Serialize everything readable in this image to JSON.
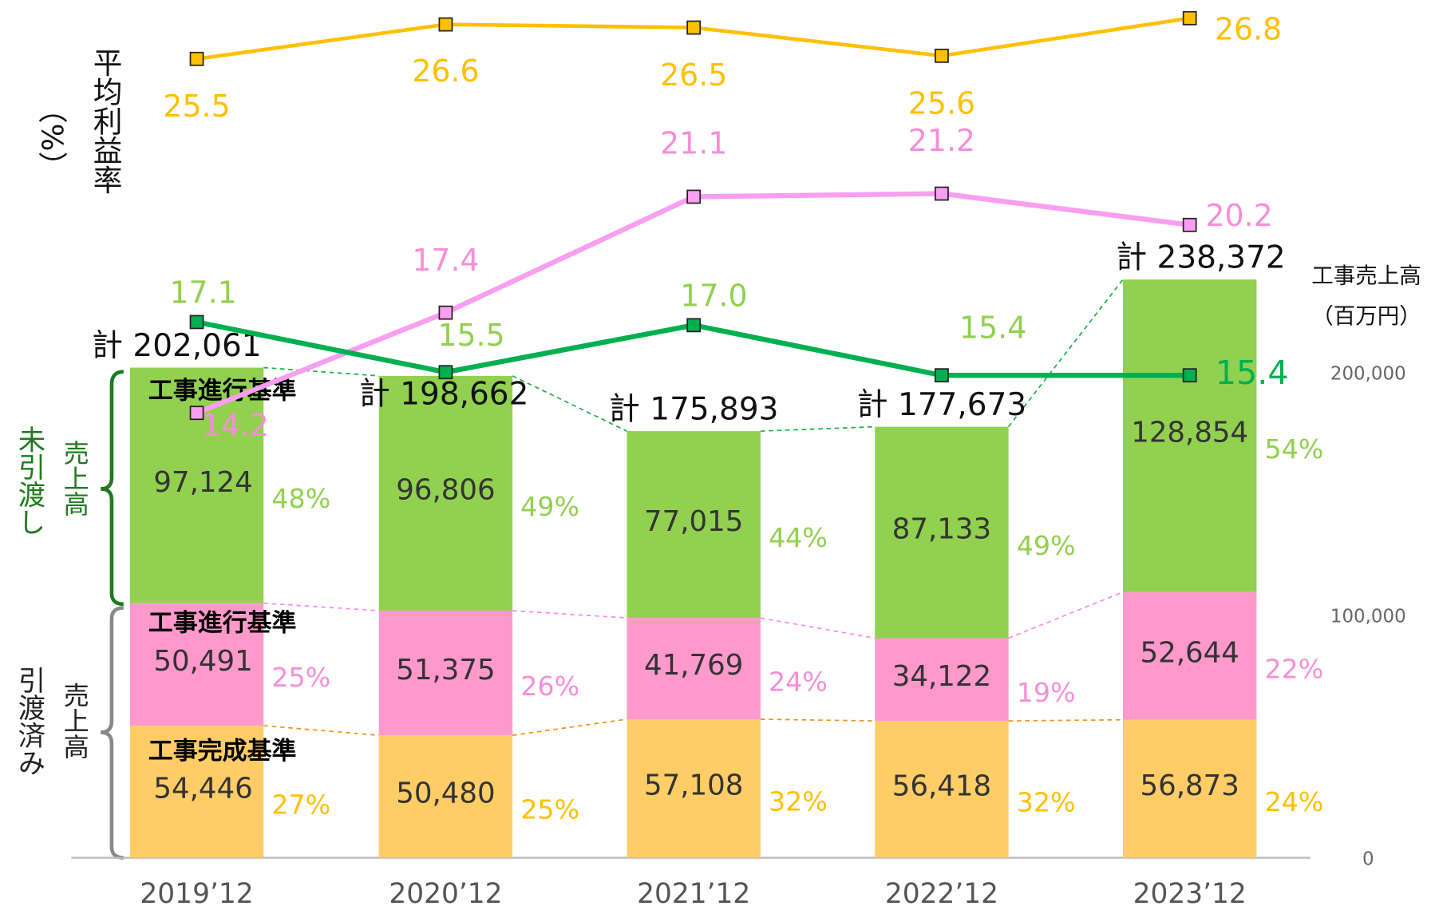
{
  "chart_data": {
    "type": "bar",
    "categories": [
      "2019’12",
      "2020’12",
      "2021’12",
      "2022’12",
      "2023’12"
    ],
    "series": [
      {
        "name": "工事完成基準",
        "color": "#ffcc66",
        "values": [
          54446,
          50480,
          57108,
          56418,
          56873
        ],
        "value_labels": [
          "54,446",
          "50,480",
          "57,108",
          "56,418",
          "56,873"
        ],
        "shares": [
          27,
          25,
          32,
          32,
          24
        ],
        "share_labels": [
          "27%",
          "25%",
          "32%",
          "32%",
          "24%"
        ],
        "share_color": "#ffc000",
        "connector_color": "#f0961e"
      },
      {
        "name": "工事進行基準",
        "color": "#ff99cc",
        "values": [
          50491,
          51375,
          41769,
          34122,
          52644
        ],
        "value_labels": [
          "50,491",
          "51,375",
          "41,769",
          "34,122",
          "52,644"
        ],
        "shares": [
          25,
          26,
          24,
          19,
          22
        ],
        "share_labels": [
          "25%",
          "26%",
          "24%",
          "19%",
          "22%"
        ],
        "share_color": "#f58fd6",
        "connector_color": "#f58fe6"
      },
      {
        "name": "工事進行基準",
        "color": "#92d050",
        "values": [
          97124,
          96806,
          77015,
          87133,
          128854
        ],
        "value_labels": [
          "97,124",
          "96,806",
          "77,015",
          "87,133",
          "128,854"
        ],
        "shares": [
          48,
          49,
          44,
          49,
          54
        ],
        "share_labels": [
          "48%",
          "49%",
          "44%",
          "49%",
          "54%"
        ],
        "share_color": "#92d050",
        "connector_color": "#1fae4a"
      },
      {
        "type": "line",
        "axis": "y2",
        "color": "#ffc000",
        "label_color": "#ffc000",
        "values": [
          25.5,
          26.6,
          26.5,
          25.6,
          26.8
        ],
        "value_labels": [
          "25.5",
          "26.6",
          "26.5",
          "25.6",
          "26.8"
        ]
      },
      {
        "type": "line",
        "axis": "y2",
        "color": "#f99ef0",
        "label_color": "#f58fd6",
        "values": [
          14.2,
          17.4,
          21.1,
          21.2,
          20.2
        ],
        "value_labels": [
          "14.2",
          "17.4",
          "21.1",
          "21.2",
          "20.2"
        ]
      },
      {
        "type": "line",
        "axis": "y2",
        "color": "#00b050",
        "label_color": "#92d050",
        "values": [
          17.1,
          15.5,
          17.0,
          15.4,
          15.4
        ],
        "value_labels": [
          "17.1",
          "15.5",
          "17.0",
          "15.4",
          "15.4"
        ]
      }
    ],
    "totals": [
      202061,
      198662,
      175893,
      177673,
      238372
    ],
    "total_labels": [
      "計 202,061",
      "計 198,662",
      "計 175,893",
      "計 177,673",
      "計 238,372"
    ],
    "ylabel": [
      "工事売上高",
      "（百万円）"
    ],
    "y2label": [
      "平均利益率",
      "（%）"
    ],
    "ylim": [
      0,
      350000
    ],
    "yticks": [
      0,
      {
        "value": 100000,
        "label": "100,000"
      },
      {
        "value": 200000,
        "label": "200,000"
      }
    ],
    "y2lim": [
      0,
      27.1
    ],
    "annotations": [
      "未引渡し",
      "売上高",
      "引渡済み",
      "売上高"
    ]
  }
}
